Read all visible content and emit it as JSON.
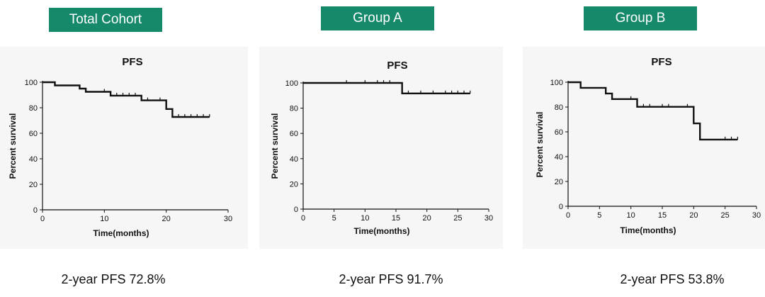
{
  "colors": {
    "badge": "#15896a",
    "curve": "#111111",
    "axis": "#111111"
  },
  "chart_data": [
    {
      "type": "line",
      "group_label": "Total Cohort",
      "title": "PFS",
      "xlabel": "Time(months)",
      "ylabel": "Percent survival",
      "xlim": [
        0,
        30
      ],
      "ylim": [
        0,
        100
      ],
      "xticks": [
        0,
        10,
        20,
        30
      ],
      "yticks": [
        0,
        20,
        40,
        60,
        80,
        100
      ],
      "grid": false,
      "step": [
        [
          0,
          100
        ],
        [
          2,
          100
        ],
        [
          2,
          97.5
        ],
        [
          6,
          97.5
        ],
        [
          6,
          95
        ],
        [
          7,
          95
        ],
        [
          7,
          92.5
        ],
        [
          11,
          92.5
        ],
        [
          11,
          89.5
        ],
        [
          16,
          89.5
        ],
        [
          16,
          85.8
        ],
        [
          20,
          85.8
        ],
        [
          20,
          79
        ],
        [
          21,
          79
        ],
        [
          21,
          72.8
        ],
        [
          27,
          72.8
        ]
      ],
      "censors": [
        [
          10,
          92.5
        ],
        [
          12,
          89.5
        ],
        [
          13,
          89.5
        ],
        [
          14,
          89.5
        ],
        [
          15,
          89.5
        ],
        [
          17,
          85.8
        ],
        [
          19,
          85.8
        ],
        [
          22,
          72.8
        ],
        [
          23,
          72.8
        ],
        [
          24,
          72.8
        ],
        [
          25,
          72.8
        ],
        [
          26,
          72.8
        ],
        [
          27,
          72.8
        ]
      ],
      "summary": "2-year PFS 72.8%"
    },
    {
      "type": "line",
      "group_label": "Group A",
      "title": "PFS",
      "xlabel": "Time(months)",
      "ylabel": "Percent survival",
      "xlim": [
        0,
        30
      ],
      "ylim": [
        0,
        100
      ],
      "xticks": [
        0,
        5,
        10,
        15,
        20,
        25,
        30
      ],
      "yticks": [
        0,
        20,
        40,
        60,
        80,
        100
      ],
      "grid": false,
      "step": [
        [
          0,
          100
        ],
        [
          16,
          100
        ],
        [
          16,
          91.7
        ],
        [
          27,
          91.7
        ]
      ],
      "censors": [
        [
          7,
          100
        ],
        [
          10,
          100
        ],
        [
          12,
          100
        ],
        [
          13,
          100
        ],
        [
          14,
          100
        ],
        [
          17,
          91.7
        ],
        [
          19,
          91.7
        ],
        [
          21,
          91.7
        ],
        [
          23,
          91.7
        ],
        [
          24,
          91.7
        ],
        [
          25,
          91.7
        ],
        [
          26,
          91.7
        ],
        [
          27,
          91.7
        ]
      ],
      "summary": "2-year PFS 91.7%"
    },
    {
      "type": "line",
      "group_label": "Group B",
      "title": "PFS",
      "xlabel": "Time(months)",
      "ylabel": "Percent survival",
      "xlim": [
        0,
        30
      ],
      "ylim": [
        0,
        100
      ],
      "xticks": [
        0,
        5,
        10,
        15,
        20,
        25,
        30
      ],
      "yticks": [
        0,
        20,
        40,
        60,
        80,
        100
      ],
      "grid": false,
      "step": [
        [
          0,
          100
        ],
        [
          2,
          100
        ],
        [
          2,
          95.5
        ],
        [
          6,
          95.5
        ],
        [
          6,
          90.9
        ],
        [
          7,
          90.9
        ],
        [
          7,
          86.4
        ],
        [
          11,
          86.4
        ],
        [
          11,
          80.2
        ],
        [
          20,
          80.2
        ],
        [
          20,
          66.8
        ],
        [
          21,
          66.8
        ],
        [
          21,
          53.8
        ],
        [
          27,
          53.8
        ]
      ],
      "censors": [
        [
          10,
          86.4
        ],
        [
          12,
          80.2
        ],
        [
          13,
          80.2
        ],
        [
          15,
          80.2
        ],
        [
          16,
          80.2
        ],
        [
          19,
          80.2
        ],
        [
          25,
          53.8
        ],
        [
          26,
          53.8
        ],
        [
          27,
          53.8
        ]
      ],
      "summary": "2-year PFS 53.8%"
    }
  ]
}
